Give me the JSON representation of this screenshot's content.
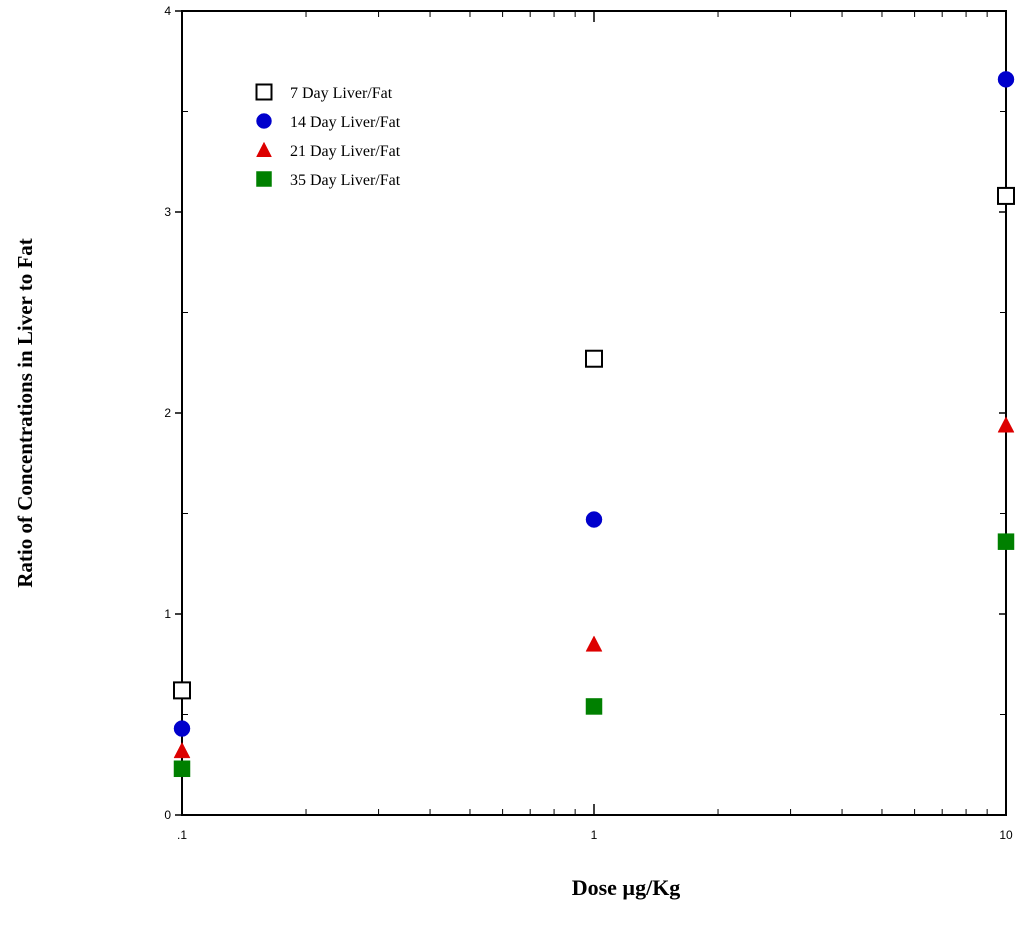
{
  "chart_data": {
    "type": "scatter",
    "title": "",
    "xlabel": "Dose µg/Kg",
    "ylabel": "Ratio of Concentrations in Liver to Fat",
    "x_scale": "log",
    "xlim": [
      0.1,
      10
    ],
    "ylim": [
      0,
      4
    ],
    "x_ticks": [
      {
        "value": 0.1,
        "label": ".1"
      },
      {
        "value": 1,
        "label": "1"
      },
      {
        "value": 10,
        "label": "10"
      }
    ],
    "y_ticks": [
      {
        "value": 0,
        "label": "0"
      },
      {
        "value": 1,
        "label": "1"
      },
      {
        "value": 2,
        "label": "2"
      },
      {
        "value": 3,
        "label": "3"
      },
      {
        "value": 4,
        "label": "4"
      }
    ],
    "grid": false,
    "legend_position": "top-left",
    "series": [
      {
        "name": "7 Day Liver/Fat",
        "marker": "open-square",
        "color": "#000000",
        "x": [
          0.1,
          1,
          10
        ],
        "y": [
          0.62,
          2.27,
          3.08
        ]
      },
      {
        "name": "14 Day Liver/Fat",
        "marker": "circle",
        "color": "#0000cc",
        "x": [
          0.1,
          1,
          10
        ],
        "y": [
          0.43,
          1.47,
          3.66
        ]
      },
      {
        "name": "21 Day Liver/Fat",
        "marker": "triangle",
        "color": "#dd0000",
        "x": [
          0.1,
          1,
          10
        ],
        "y": [
          0.32,
          0.85,
          1.94
        ]
      },
      {
        "name": "35 Day Liver/Fat",
        "marker": "filled-square",
        "color": "#008000",
        "x": [
          0.1,
          1,
          10
        ],
        "y": [
          0.23,
          0.54,
          1.36
        ]
      }
    ]
  }
}
